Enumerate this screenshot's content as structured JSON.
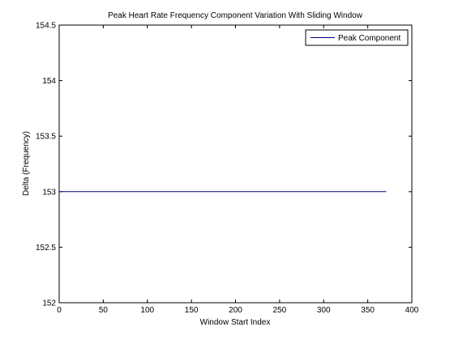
{
  "chart_data": {
    "type": "line",
    "title": "Peak Heart Rate Frequency Component Variation With Sliding Window",
    "xlabel": "Window Start Index",
    "ylabel": "Delta (Frequency)",
    "xlim": [
      0,
      400
    ],
    "ylim": [
      152,
      154.5
    ],
    "xticks": [
      0,
      50,
      100,
      150,
      200,
      250,
      300,
      350,
      400
    ],
    "yticks": [
      152,
      152.5,
      153,
      153.5,
      154,
      154.5
    ],
    "xtick_labels": [
      "0",
      "50",
      "100",
      "150",
      "200",
      "250",
      "300",
      "350",
      "400"
    ],
    "ytick_labels": [
      "152",
      "152.5",
      "153",
      "153.5",
      "154",
      "154.5"
    ],
    "grid": false,
    "legend_position": "top-right",
    "series": [
      {
        "name": "Peak Component",
        "color": "#000080",
        "x": [
          1,
          371
        ],
        "y": [
          153,
          153
        ]
      }
    ]
  }
}
